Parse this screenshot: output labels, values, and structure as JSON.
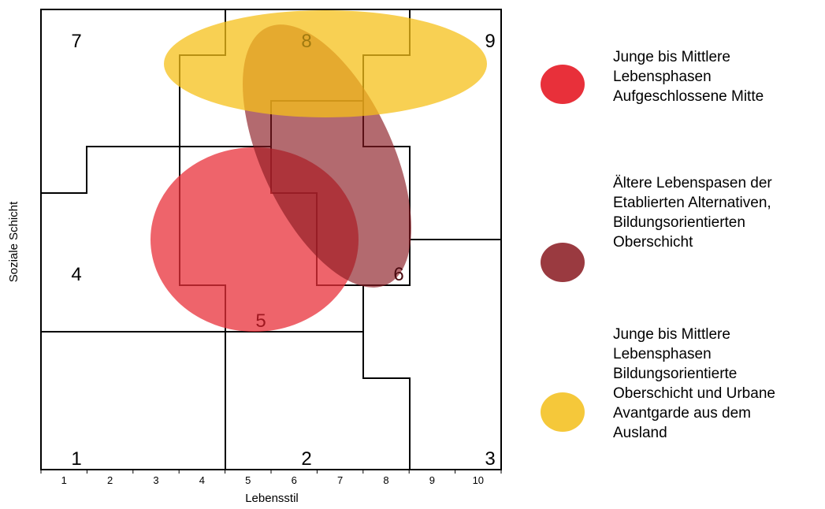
{
  "chart_data": {
    "type": "diagram",
    "xlabel": "Lebensstil",
    "ylabel": "Soziale Schicht",
    "x_ticks": [
      "1",
      "2",
      "3",
      "4",
      "5",
      "6",
      "7",
      "8",
      "9",
      "10"
    ],
    "cells": [
      {
        "id": "1",
        "label": "1"
      },
      {
        "id": "2",
        "label": "2"
      },
      {
        "id": "3",
        "label": "3"
      },
      {
        "id": "4",
        "label": "4"
      },
      {
        "id": "5",
        "label": "5"
      },
      {
        "id": "6",
        "label": "6"
      },
      {
        "id": "7",
        "label": "7"
      },
      {
        "id": "8",
        "label": "8"
      },
      {
        "id": "9",
        "label": "9"
      }
    ],
    "ellipses": [
      {
        "id": "red",
        "color": "#e8303a",
        "opacity": 0.75
      },
      {
        "id": "maroon",
        "color": "#8a1a22",
        "opacity": 0.65
      },
      {
        "id": "yellow",
        "color": "#f5c01a",
        "opacity": 0.75
      }
    ]
  },
  "legend": [
    {
      "id": "red",
      "color": "#e8303a",
      "text": "Junge bis Mittlere\nLebensphasen\nAufgeschlossene Mitte"
    },
    {
      "id": "maroon",
      "color": "#9a3a40",
      "text": "Ältere Lebenspasen der\nEtablierten Alternativen,\nBildungsorientierten\nOberschicht"
    },
    {
      "id": "yellow",
      "color": "#f5c83a",
      "text": "Junge bis Mittlere\nLebensphasen\nBildungsorientierte\nOberschicht und Urbane\nAvantgarde aus dem\nAusland"
    }
  ]
}
